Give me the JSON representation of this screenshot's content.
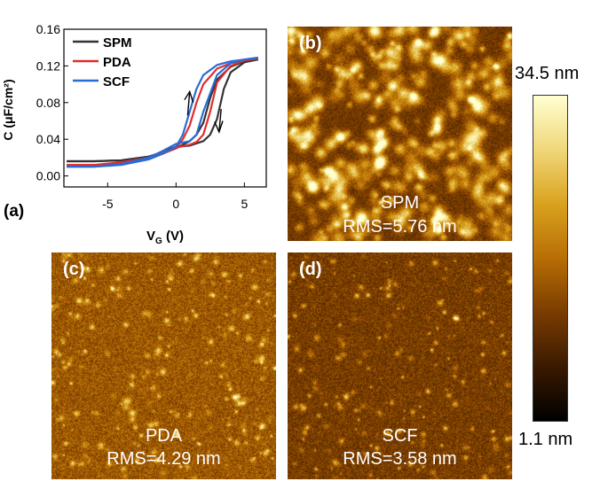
{
  "chart_data": [
    {
      "type": "line",
      "panel_label": "(a)",
      "xlabel": "V",
      "xlabel_sub": "G",
      "xlabel_unit": " (V)",
      "ylabel": "C (μF/cm²)",
      "xlim": [
        -8.2,
        6.6
      ],
      "ylim": [
        -0.012,
        0.16
      ],
      "xticks": [
        -5,
        0,
        5
      ],
      "yticks": [
        0.0,
        0.04,
        0.08,
        0.12,
        0.16
      ],
      "ytick_labels": [
        "0.00",
        "0.04",
        "0.08",
        "0.12",
        "0.16"
      ],
      "legend_position": "top-left",
      "annotations": [
        "up arrow on forward sweep",
        "down arrow on reverse sweep"
      ],
      "series": [
        {
          "name": "SPM",
          "color": "#333333",
          "forward": [
            [
              -8,
              0.016
            ],
            [
              -6,
              0.016
            ],
            [
              -4,
              0.017
            ],
            [
              -2,
              0.021
            ],
            [
              -1,
              0.025
            ],
            [
              0,
              0.03
            ],
            [
              1,
              0.038
            ],
            [
              1.5,
              0.045
            ],
            [
              2,
              0.058
            ],
            [
              2.5,
              0.085
            ],
            [
              3,
              0.105
            ],
            [
              4,
              0.119
            ],
            [
              5,
              0.125
            ],
            [
              6,
              0.127
            ]
          ],
          "reverse": [
            [
              6,
              0.127
            ],
            [
              5,
              0.124
            ],
            [
              4,
              0.113
            ],
            [
              3.5,
              0.095
            ],
            [
              3,
              0.062
            ],
            [
              2.5,
              0.045
            ],
            [
              2,
              0.038
            ],
            [
              1,
              0.033
            ],
            [
              0,
              0.032
            ],
            [
              -1,
              0.026
            ],
            [
              -2,
              0.021
            ],
            [
              -4,
              0.017
            ],
            [
              -6,
              0.016
            ],
            [
              -8,
              0.016
            ]
          ]
        },
        {
          "name": "PDA",
          "color": "#e02d2d",
          "forward": [
            [
              -8,
              0.012
            ],
            [
              -6,
              0.012
            ],
            [
              -4,
              0.014
            ],
            [
              -2,
              0.019
            ],
            [
              -1,
              0.024
            ],
            [
              0,
              0.03
            ],
            [
              0.5,
              0.04
            ],
            [
              1,
              0.055
            ],
            [
              1.5,
              0.08
            ],
            [
              2,
              0.1
            ],
            [
              3,
              0.117
            ],
            [
              4,
              0.123
            ],
            [
              5,
              0.126
            ],
            [
              6,
              0.128
            ]
          ],
          "reverse": [
            [
              6,
              0.128
            ],
            [
              5,
              0.126
            ],
            [
              4,
              0.12
            ],
            [
              3,
              0.102
            ],
            [
              2.5,
              0.07
            ],
            [
              2,
              0.045
            ],
            [
              1.5,
              0.037
            ],
            [
              1,
              0.034
            ],
            [
              0,
              0.031
            ],
            [
              -1,
              0.025
            ],
            [
              -2,
              0.02
            ],
            [
              -4,
              0.015
            ],
            [
              -6,
              0.012
            ],
            [
              -8,
              0.012
            ]
          ]
        },
        {
          "name": "SCF",
          "color": "#2a6bd6",
          "forward": [
            [
              -8,
              0.01
            ],
            [
              -6,
              0.01
            ],
            [
              -4,
              0.012
            ],
            [
              -2,
              0.018
            ],
            [
              -1,
              0.024
            ],
            [
              0,
              0.032
            ],
            [
              0.5,
              0.045
            ],
            [
              1,
              0.07
            ],
            [
              1.5,
              0.095
            ],
            [
              2,
              0.11
            ],
            [
              3,
              0.121
            ],
            [
              4,
              0.125
            ],
            [
              5,
              0.127
            ],
            [
              6,
              0.129
            ]
          ],
          "reverse": [
            [
              6,
              0.129
            ],
            [
              5,
              0.127
            ],
            [
              4,
              0.123
            ],
            [
              3,
              0.11
            ],
            [
              2,
              0.07
            ],
            [
              1.5,
              0.045
            ],
            [
              1,
              0.038
            ],
            [
              0,
              0.035
            ],
            [
              -1,
              0.027
            ],
            [
              -2,
              0.02
            ],
            [
              -4,
              0.013
            ],
            [
              -6,
              0.01
            ],
            [
              -8,
              0.01
            ]
          ]
        }
      ]
    },
    {
      "type": "heatmap",
      "panel_label": "(b)",
      "sample": "SPM",
      "rms_text": "RMS=5.76 nm",
      "rms_nm": 5.76
    },
    {
      "type": "heatmap",
      "panel_label": "(c)",
      "sample": "PDA",
      "rms_text": "RMS=4.29 nm",
      "rms_nm": 4.29
    },
    {
      "type": "heatmap",
      "panel_label": "(d)",
      "sample": "SCF",
      "rms_text": "RMS=3.58 nm",
      "rms_nm": 3.58
    }
  ],
  "colorbar": {
    "max_label": "34.5 nm",
    "min_label": "1.1 nm",
    "max_nm": 34.5,
    "min_nm": 1.1,
    "colors": [
      "#000000",
      "#3a1a00",
      "#7a3c00",
      "#b86e05",
      "#d9a21e",
      "#f0d77a",
      "#ffffd0"
    ]
  }
}
